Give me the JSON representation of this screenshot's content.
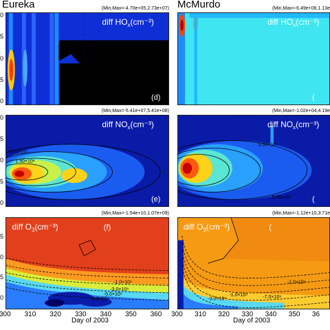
{
  "columns": [
    {
      "title": "Eureka"
    },
    {
      "title": "McMurdo"
    }
  ],
  "panels": [
    {
      "id": "eureka-hox",
      "col": 0,
      "row": 0,
      "label": "diff HO",
      "sub": "x",
      "unit": "(cm⁻³)",
      "letter": "(d)",
      "minmax": "(Min,Max=-4.70e+05,2.73e+07)",
      "bg": "#000000",
      "kind": "hox-eureka"
    },
    {
      "id": "mcmurdo-hox",
      "col": 1,
      "row": 0,
      "label": "diff HO",
      "sub": "x",
      "unit": "(cm⁻³)",
      "letter": "(",
      "minmax": "(Min,Max=-6.49e+06,1.13e",
      "bg": "#3fe6f2",
      "kind": "hox-mcmurdo"
    },
    {
      "id": "eureka-nox",
      "col": 0,
      "row": 1,
      "label": "diff NO",
      "sub": "x",
      "unit": "(cm⁻³)",
      "letter": "(e)",
      "minmax": "(Min,Max=-5.41e+07,5.41e+08)",
      "bg": "#0a1ba8",
      "kind": "nox-eureka"
    },
    {
      "id": "mcmurdo-nox",
      "col": 1,
      "row": 1,
      "label": "diff NO",
      "sub": "x",
      "unit": "(cm⁻³)",
      "letter": "(",
      "minmax": "(Min,Max=-1.02e+04,4.19e",
      "bg": "#0a1ba8",
      "kind": "nox-mcmurdo"
    },
    {
      "id": "eureka-o3",
      "col": 0,
      "row": 2,
      "label": "diff O",
      "sub": "3",
      "unit": "(cm⁻³)",
      "letter": "(f)",
      "minmax": "(Min,Max=-1.54e+10,1.07e+09)",
      "bg": "#e2401c",
      "kind": "o3-eureka"
    },
    {
      "id": "mcmurdo-o3",
      "col": 1,
      "row": 2,
      "label": "diff O",
      "sub": "3",
      "unit": "(cm⁻³)",
      "letter": "(",
      "minmax": "(Min,Max=-1.12e+10,3.71e",
      "bg": "#f59a12",
      "kind": "o3-mcmurdo"
    }
  ],
  "contour_labels": {
    "eureka_nox": [
      "5.00×10⁷",
      "1.50×10⁸"
    ],
    "mcmurdo_nox": [
      "5.00×10⁷",
      "5.00×10⁷"
    ],
    "eureka_o3": [
      "-1.0×10⁹",
      "-3.0×10⁹",
      "-5.0×10⁹",
      "-9.0×10⁹"
    ],
    "mcmurdo_o3": [
      "-1.0×10⁹",
      "-1.0×10⁹",
      "-3.0×10⁹",
      "-7.0×10⁹"
    ]
  },
  "chart_data": {
    "type": "heatmap",
    "xlabel": "Day of 2003",
    "x_ticks_left": [
      "300",
      "310",
      "320",
      "330",
      "340",
      "350",
      "360"
    ],
    "x_ticks_right": [
      "300",
      "310",
      "320",
      "330",
      "340",
      "350",
      "36"
    ],
    "y_ticks_left": {
      "hox": [
        "0",
        "5",
        "0",
        "5",
        "0"
      ],
      "nox": [
        "0",
        "5",
        "0",
        "5",
        "0"
      ],
      "o3": [
        "5",
        "0",
        "5",
        "0"
      ]
    },
    "xlim": [
      300,
      365
    ],
    "colors": {
      "black": "#000000",
      "cyan": "#3fe6f2",
      "navy": "#0a1ba8",
      "red": "#e2401c",
      "orange": "#f59a12"
    }
  }
}
